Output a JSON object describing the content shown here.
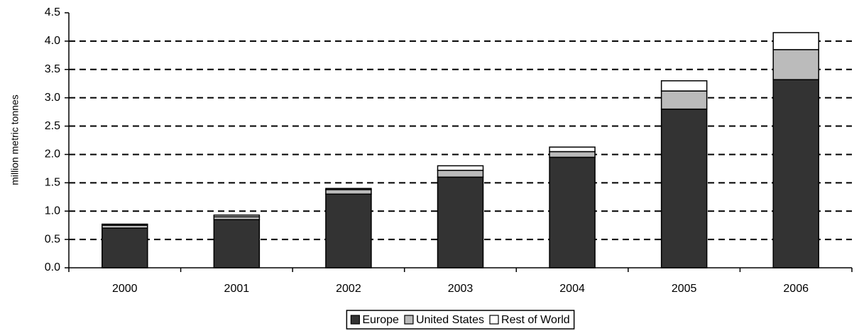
{
  "chart_data": {
    "type": "stacked_bar",
    "y_label": "million metric tonnes",
    "categories": [
      "2000",
      "2001",
      "2002",
      "2003",
      "2004",
      "2005",
      "2006"
    ],
    "series": [
      {
        "name": "Europe",
        "color": "#333333",
        "values": [
          0.7,
          0.85,
          1.3,
          1.6,
          1.95,
          2.8,
          3.32
        ]
      },
      {
        "name": "United States",
        "color": "#bbbbbb",
        "values": [
          0.05,
          0.05,
          0.08,
          0.12,
          0.1,
          0.32,
          0.53
        ]
      },
      {
        "name": "Rest of World",
        "color": "#ffffff",
        "values": [
          0.02,
          0.03,
          0.02,
          0.08,
          0.08,
          0.18,
          0.3
        ]
      }
    ],
    "ylim": [
      0,
      4.5
    ],
    "yticks": [
      {
        "value": 0,
        "label": "0.0"
      },
      0.5,
      {
        "value": 1,
        "label": "1.0"
      },
      1.5,
      {
        "value": 2,
        "label": "2.0"
      },
      2.5,
      {
        "value": 3,
        "label": "3.0"
      },
      3.5,
      {
        "value": 4,
        "label": "4.0"
      },
      4.5
    ],
    "grid": true,
    "legend": "bottom"
  }
}
